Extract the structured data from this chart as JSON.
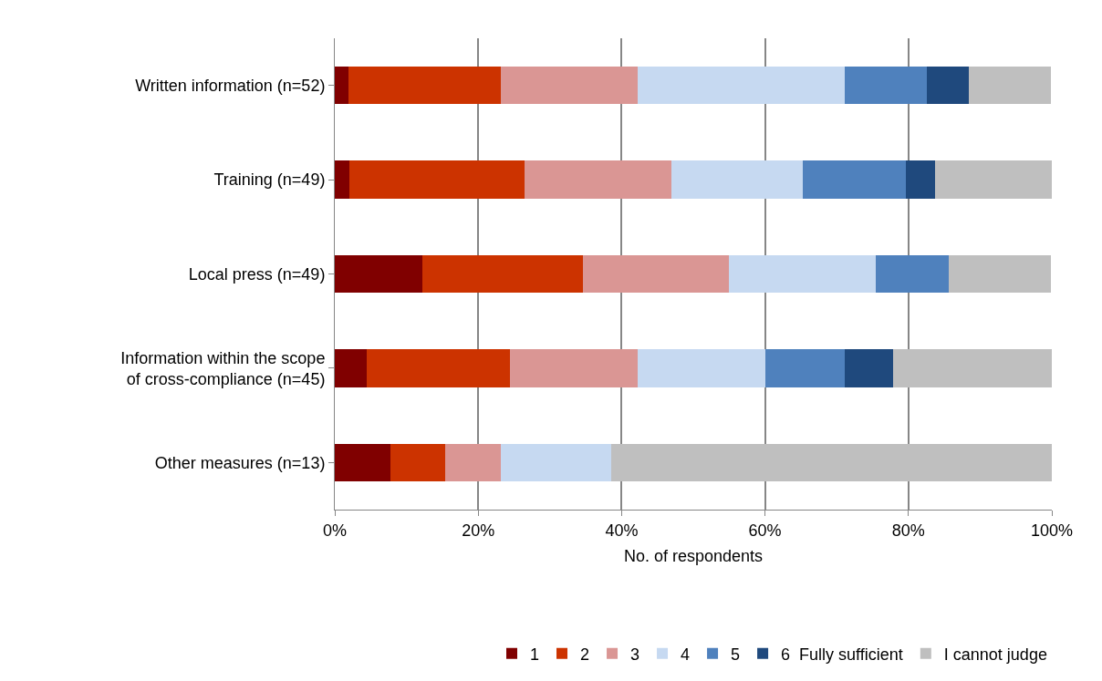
{
  "chart_data": {
    "type": "bar",
    "orientation": "horizontal",
    "stacked": true,
    "xlabel": "No. of respondents",
    "categories": [
      "Written information (n=52)",
      "Training (n=49)",
      "Local press (n=49)",
      "Information within the scope of cross-compliance (n=45)",
      "Other measures (n=13)"
    ],
    "series": [
      {
        "name": "1",
        "color": "#800000",
        "values": [
          1.9,
          2.0,
          12.2,
          4.4,
          7.7
        ]
      },
      {
        "name": "2",
        "color": "#cc3300",
        "values": [
          21.2,
          24.5,
          22.4,
          20.0,
          7.7
        ]
      },
      {
        "name": "3",
        "color": "#da9694",
        "values": [
          19.2,
          20.4,
          20.4,
          17.8,
          7.7
        ]
      },
      {
        "name": "4",
        "color": "#c6d9f1",
        "values": [
          28.8,
          18.4,
          20.4,
          17.8,
          15.4
        ]
      },
      {
        "name": "5",
        "color": "#4f81bd",
        "values": [
          11.5,
          14.3,
          10.2,
          11.1,
          0
        ]
      },
      {
        "name": "6  Fully sufficient",
        "color": "#1f497d",
        "values": [
          5.8,
          4.1,
          0,
          6.7,
          0
        ]
      },
      {
        "name": "I cannot judge",
        "color": "#bfbfbf",
        "values": [
          11.5,
          16.3,
          14.3,
          22.2,
          61.5
        ]
      }
    ],
    "xlim": [
      0,
      100
    ],
    "xticks": [
      {
        "value": 0,
        "label": "0%"
      },
      {
        "value": 20,
        "label": "20%"
      },
      {
        "value": 40,
        "label": "40%"
      },
      {
        "value": 60,
        "label": "60%"
      },
      {
        "value": 80,
        "label": "80%"
      },
      {
        "value": 100,
        "label": "100%"
      }
    ],
    "grid": "x",
    "legend": "bottom"
  }
}
